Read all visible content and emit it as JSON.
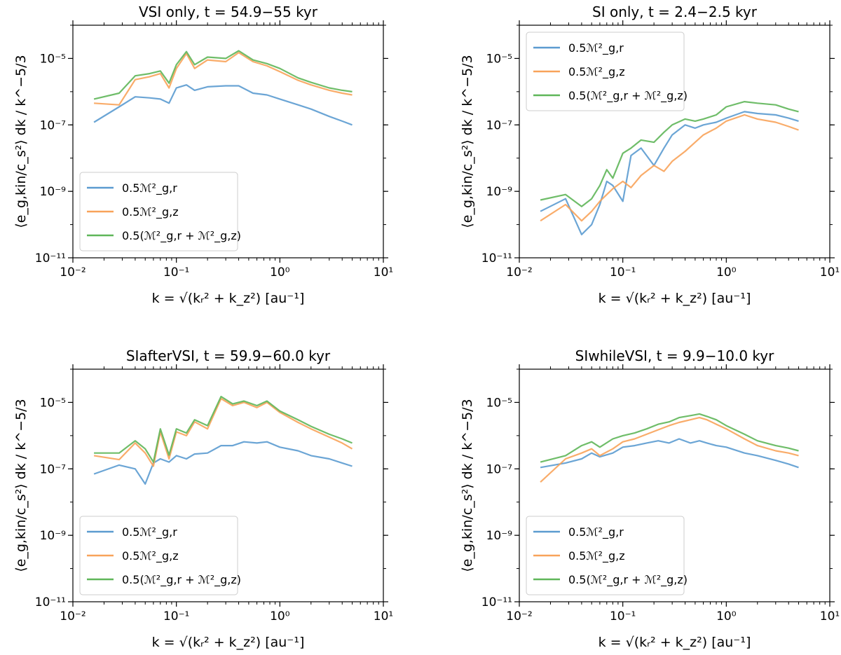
{
  "figure": {
    "x_label": "k = √(kᵣ² + k_z²) [au⁻¹]",
    "y_label": "⟨e_g,kin/c_s²⟩ dk / k^−5/3"
  },
  "colors": {
    "radial": "#5b9bd0",
    "vertical": "#f8a35a",
    "total": "#5fb659"
  },
  "chart_data": [
    {
      "type": "line",
      "panel": "top-left",
      "title": "VSI only, t = 54.9−55 kyr",
      "xscale": "log",
      "yscale": "log",
      "xlim": [
        0.01,
        10
      ],
      "ylim": [
        1e-11,
        0.0001
      ],
      "x_ticks": [
        "10⁻²",
        "10⁻¹",
        "10⁰",
        "10¹"
      ],
      "y_ticks": [
        "10⁻¹¹",
        "10⁻⁹",
        "10⁻⁷",
        "10⁻⁵"
      ],
      "legend": [
        "0.5ℳ²_g,r",
        "0.5ℳ²_g,z",
        "0.5(ℳ²_g,r + ℳ²_g,z)"
      ],
      "legend_position": "lower-left",
      "x": [
        0.016,
        0.028,
        0.04,
        0.055,
        0.07,
        0.085,
        0.1,
        0.125,
        0.15,
        0.2,
        0.3,
        0.4,
        0.55,
        0.75,
        1.0,
        1.5,
        2.0,
        3.0,
        4.0,
        5.0
      ],
      "series": [
        {
          "name": "0.5ℳ²_g,r",
          "values": [
            1.2e-07,
            3.5e-07,
            7e-07,
            6.5e-07,
            6e-07,
            4.5e-07,
            1.3e-06,
            1.6e-06,
            1.1e-06,
            1.4e-06,
            1.5e-06,
            1.5e-06,
            9e-07,
            8e-07,
            6e-07,
            4e-07,
            3e-07,
            1.8e-07,
            1.3e-07,
            1e-07
          ]
        },
        {
          "name": "0.5ℳ²_g,z",
          "values": [
            4.5e-07,
            4e-07,
            2.3e-06,
            2.8e-06,
            3.5e-06,
            1.3e-06,
            5e-06,
            1.4e-05,
            5e-06,
            9e-06,
            8e-06,
            1.5e-05,
            8e-06,
            6e-06,
            4e-06,
            2.2e-06,
            1.6e-06,
            1.1e-06,
            9e-07,
            8e-07
          ]
        },
        {
          "name": "0.5(ℳ²_g,r + ℳ²_g,z)",
          "values": [
            6e-07,
            9e-07,
            3e-06,
            3.5e-06,
            4.2e-06,
            1.8e-06,
            6.5e-06,
            1.6e-05,
            6.5e-06,
            1.1e-05,
            1e-05,
            1.7e-05,
            9e-06,
            7e-06,
            5e-06,
            2.6e-06,
            1.9e-06,
            1.3e-06,
            1.1e-06,
            1e-06
          ]
        }
      ]
    },
    {
      "type": "line",
      "panel": "top-right",
      "title": "SI only, t = 2.4−2.5 kyr",
      "xscale": "log",
      "yscale": "log",
      "xlim": [
        0.01,
        10
      ],
      "ylim": [
        1e-11,
        0.0001
      ],
      "x_ticks": [
        "10⁻²",
        "10⁻¹",
        "10⁰",
        "10¹"
      ],
      "y_ticks": [
        "10⁻¹¹",
        "10⁻⁹",
        "10⁻⁷",
        "10⁻⁵"
      ],
      "legend": [
        "0.5ℳ²_g,r",
        "0.5ℳ²_g,z",
        "0.5(ℳ²_g,r + ℳ²_g,z)"
      ],
      "legend_position": "upper-left",
      "x": [
        0.016,
        0.028,
        0.04,
        0.05,
        0.06,
        0.07,
        0.08,
        0.1,
        0.12,
        0.15,
        0.2,
        0.25,
        0.3,
        0.4,
        0.5,
        0.6,
        0.8,
        1.0,
        1.5,
        2.0,
        3.0,
        4.0,
        5.0
      ],
      "series": [
        {
          "name": "0.5ℳ²_g,r",
          "values": [
            2.5e-10,
            6e-10,
            5e-11,
            1e-10,
            4e-10,
            2e-09,
            1.5e-09,
            5e-10,
            1.2e-08,
            2e-08,
            6e-09,
            2e-08,
            5e-08,
            1e-07,
            8e-08,
            1e-07,
            1.2e-07,
            1.6e-07,
            2.5e-07,
            2.2e-07,
            2e-07,
            1.6e-07,
            1.3e-07
          ]
        },
        {
          "name": "0.5ℳ²_g,z",
          "values": [
            1.3e-10,
            4e-10,
            1.3e-10,
            2.5e-10,
            5e-10,
            8e-10,
            1.2e-09,
            2e-09,
            1.3e-09,
            3e-09,
            6e-09,
            4e-09,
            8e-09,
            1.6e-08,
            3e-08,
            5e-08,
            8e-08,
            1.3e-07,
            2e-07,
            1.5e-07,
            1.2e-07,
            9e-08,
            7e-08
          ]
        },
        {
          "name": "0.5(ℳ²_g,r + ℳ²_g,z)",
          "values": [
            5.5e-10,
            8e-10,
            3.5e-10,
            6e-10,
            1.5e-09,
            4.5e-09,
            2.5e-09,
            1.4e-08,
            2e-08,
            3.5e-08,
            3e-08,
            6e-08,
            1e-07,
            1.5e-07,
            1.3e-07,
            1.5e-07,
            2e-07,
            3.5e-07,
            5e-07,
            4.5e-07,
            4e-07,
            3e-07,
            2.5e-07
          ]
        }
      ]
    },
    {
      "type": "line",
      "panel": "bottom-left",
      "title": "SIafterVSI, t = 59.9−60.0 kyr",
      "xscale": "log",
      "yscale": "log",
      "xlim": [
        0.01,
        10
      ],
      "ylim": [
        1e-11,
        0.0001
      ],
      "x_ticks": [
        "10⁻²",
        "10⁻¹",
        "10⁰",
        "10¹"
      ],
      "y_ticks": [
        "10⁻¹¹",
        "10⁻⁹",
        "10⁻⁷",
        "10⁻⁵"
      ],
      "legend": [
        "0.5ℳ²_g,r",
        "0.5ℳ²_g,z",
        "0.5(ℳ²_g,r + ℳ²_g,z)"
      ],
      "legend_position": "lower-left",
      "x": [
        0.016,
        0.028,
        0.04,
        0.05,
        0.06,
        0.07,
        0.085,
        0.1,
        0.125,
        0.15,
        0.2,
        0.27,
        0.35,
        0.45,
        0.6,
        0.75,
        1.0,
        1.5,
        2.0,
        3.0,
        4.0,
        5.0
      ],
      "series": [
        {
          "name": "0.5ℳ²_g,r",
          "values": [
            7e-08,
            1.3e-07,
            1e-07,
            3.5e-08,
            1.5e-07,
            2e-07,
            1.6e-07,
            2.5e-07,
            2e-07,
            2.8e-07,
            3e-07,
            5e-07,
            5e-07,
            6.5e-07,
            6e-07,
            6.5e-07,
            4.5e-07,
            3.5e-07,
            2.5e-07,
            2e-07,
            1.5e-07,
            1.2e-07
          ]
        },
        {
          "name": "0.5ℳ²_g,z",
          "values": [
            2.5e-07,
            1.9e-07,
            6e-07,
            3e-07,
            1.2e-07,
            1.3e-06,
            2e-07,
            1.3e-06,
            1e-06,
            2.6e-06,
            1.6e-06,
            1.3e-05,
            8e-06,
            1e-05,
            7e-06,
            1e-05,
            5e-06,
            2.5e-06,
            1.6e-06,
            9e-07,
            6e-07,
            4e-07
          ]
        },
        {
          "name": "0.5(ℳ²_g,r + ℳ²_g,z)",
          "values": [
            3e-07,
            3e-07,
            7e-07,
            4e-07,
            1.6e-07,
            1.6e-06,
            2.6e-07,
            1.6e-06,
            1.2e-06,
            3e-06,
            2e-06,
            1.5e-05,
            9e-06,
            1.1e-05,
            8e-06,
            1.1e-05,
            5.5e-06,
            3e-06,
            1.9e-06,
            1.1e-06,
            8e-07,
            6e-07
          ]
        }
      ]
    },
    {
      "type": "line",
      "panel": "bottom-right",
      "title": "SIwhileVSI, t = 9.9−10.0 kyr",
      "xscale": "log",
      "yscale": "log",
      "xlim": [
        0.01,
        10
      ],
      "ylim": [
        1e-11,
        0.0001
      ],
      "x_ticks": [
        "10⁻²",
        "10⁻¹",
        "10⁰",
        "10¹"
      ],
      "y_ticks": [
        "10⁻¹¹",
        "10⁻⁹",
        "10⁻⁷",
        "10⁻⁵"
      ],
      "legend": [
        "0.5ℳ²_g,r",
        "0.5ℳ²_g,z",
        "0.5(ℳ²_g,r + ℳ²_g,z)"
      ],
      "legend_position": "lower-left",
      "x": [
        0.016,
        0.028,
        0.04,
        0.05,
        0.06,
        0.08,
        0.1,
        0.13,
        0.17,
        0.22,
        0.28,
        0.35,
        0.45,
        0.55,
        0.65,
        0.8,
        1.0,
        1.5,
        2.0,
        3.0,
        4.0,
        5.0
      ],
      "series": [
        {
          "name": "0.5ℳ²_g,r",
          "values": [
            1.1e-07,
            1.5e-07,
            2e-07,
            3e-07,
            2.3e-07,
            3e-07,
            4.5e-07,
            5e-07,
            6e-07,
            7e-07,
            6e-07,
            8e-07,
            6e-07,
            7e-07,
            6e-07,
            5e-07,
            4.5e-07,
            3e-07,
            2.5e-07,
            1.8e-07,
            1.4e-07,
            1.1e-07
          ]
        },
        {
          "name": "0.5ℳ²_g,z",
          "values": [
            4e-08,
            2e-07,
            3e-07,
            4e-07,
            2.5e-07,
            4e-07,
            6.5e-07,
            8e-07,
            1.1e-06,
            1.5e-06,
            2e-06,
            2.5e-06,
            3e-06,
            3.5e-06,
            3e-06,
            2.2e-06,
            1.6e-06,
            8e-07,
            5e-07,
            3.5e-07,
            3e-07,
            2.5e-07
          ]
        },
        {
          "name": "0.5(ℳ²_g,r + ℳ²_g,z)",
          "values": [
            1.6e-07,
            2.5e-07,
            5e-07,
            6.5e-07,
            4.5e-07,
            8e-07,
            1e-06,
            1.2e-06,
            1.6e-06,
            2.2e-06,
            2.6e-06,
            3.5e-06,
            4e-06,
            4.5e-06,
            3.8e-06,
            3e-06,
            2e-06,
            1.1e-06,
            7e-07,
            5e-07,
            4.2e-07,
            3.5e-07
          ]
        }
      ]
    }
  ]
}
